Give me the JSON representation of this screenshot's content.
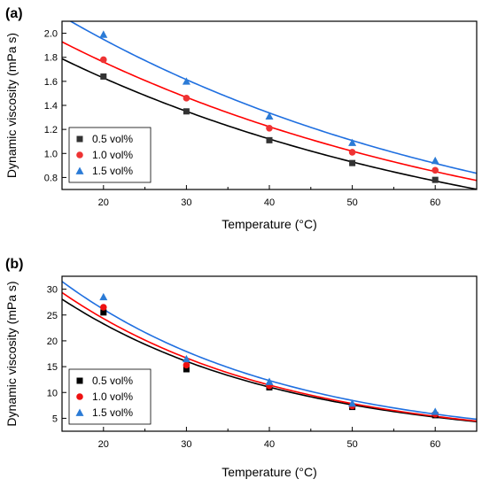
{
  "chart_data": [
    {
      "type": "scatter",
      "panel_label": "(a)",
      "xlabel": "Temperature (°C)",
      "ylabel": "Dynamic viscosity (mPa s)",
      "xlim": [
        15,
        65
      ],
      "ylim": [
        0.7,
        2.1
      ],
      "xticks": [
        20,
        30,
        40,
        50,
        60
      ],
      "yticks": [
        0.8,
        1.0,
        1.2,
        1.4,
        1.6,
        1.8,
        2.0
      ],
      "ytick_labels": [
        "0.8",
        "1.0",
        "1.2",
        "1.4",
        "1.6",
        "1.8",
        "2.0"
      ],
      "grid": false,
      "legend_position": "bottom-left",
      "series": [
        {
          "name": "0.5 vol%",
          "marker": "square",
          "color": "#333333",
          "line_color": "#000000",
          "x": [
            20,
            30,
            40,
            50,
            60
          ],
          "y": [
            1.64,
            1.35,
            1.11,
            0.92,
            0.78
          ]
        },
        {
          "name": "1.0 vol%",
          "marker": "circle",
          "color": "#ee3333",
          "line_color": "#ff0000",
          "x": [
            20,
            30,
            40,
            50,
            60
          ],
          "y": [
            1.78,
            1.46,
            1.21,
            1.01,
            0.86
          ]
        },
        {
          "name": "1.5 vol%",
          "marker": "triangle",
          "color": "#2b7bd6",
          "line_color": "#1f6fe0",
          "x": [
            20,
            30,
            40,
            50,
            60
          ],
          "y": [
            1.99,
            1.6,
            1.31,
            1.09,
            0.94
          ]
        }
      ]
    },
    {
      "type": "scatter",
      "panel_label": "(b)",
      "xlabel": "Temperature (°C)",
      "ylabel": "Dynamic viscosity (mPa s)",
      "xlim": [
        15,
        65
      ],
      "ylim": [
        2.5,
        32.5
      ],
      "xticks": [
        20,
        30,
        40,
        50,
        60
      ],
      "yticks": [
        5,
        10,
        15,
        20,
        25,
        30
      ],
      "ytick_labels": [
        "5",
        "10",
        "15",
        "20",
        "25",
        "30"
      ],
      "grid": false,
      "legend_position": "bottom-left",
      "series": [
        {
          "name": "0.5 vol%",
          "marker": "square",
          "color": "#000000",
          "line_color": "#000000",
          "x": [
            20,
            30,
            40,
            50,
            60
          ],
          "y": [
            25.5,
            14.5,
            11.0,
            7.2,
            5.6
          ]
        },
        {
          "name": "1.0 vol%",
          "marker": "circle",
          "color": "#ee1111",
          "line_color": "#ff0000",
          "x": [
            20,
            30,
            40,
            50,
            60
          ],
          "y": [
            26.5,
            15.3,
            11.3,
            7.4,
            5.8
          ]
        },
        {
          "name": "1.5 vol%",
          "marker": "triangle",
          "color": "#2b7bd6",
          "line_color": "#1f6fe0",
          "x": [
            20,
            30,
            40,
            50,
            60
          ],
          "y": [
            28.5,
            16.5,
            12.1,
            7.9,
            6.3
          ]
        }
      ]
    }
  ]
}
